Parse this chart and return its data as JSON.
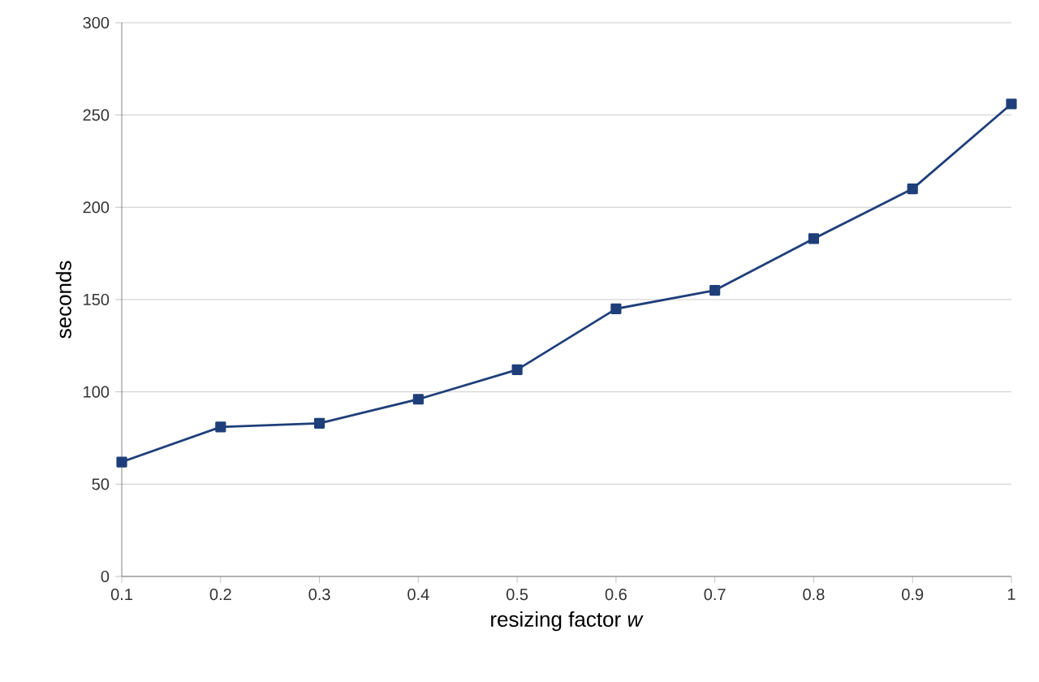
{
  "chart_data": {
    "type": "line",
    "xlabel": "resizing factor *w*",
    "ylabel": "seconds",
    "x": [
      0.1,
      0.2,
      0.3,
      0.4,
      0.5,
      0.6,
      0.7,
      0.8,
      0.9,
      1
    ],
    "series": [
      {
        "color": "#1f3f7a",
        "values": [
          62,
          81,
          83,
          96,
          112,
          145,
          155,
          183,
          210,
          256
        ]
      }
    ],
    "xlim": [
      0.1,
      1
    ],
    "ylim": [
      0,
      300
    ],
    "xticks": [
      0.1,
      0.2,
      0.3,
      0.4,
      0.5,
      0.6,
      0.7,
      0.8,
      0.9,
      1
    ],
    "yticks": [
      0,
      50,
      100,
      150,
      200,
      250,
      300
    ],
    "grid": "y",
    "marker": "square",
    "line_style": "solid"
  }
}
